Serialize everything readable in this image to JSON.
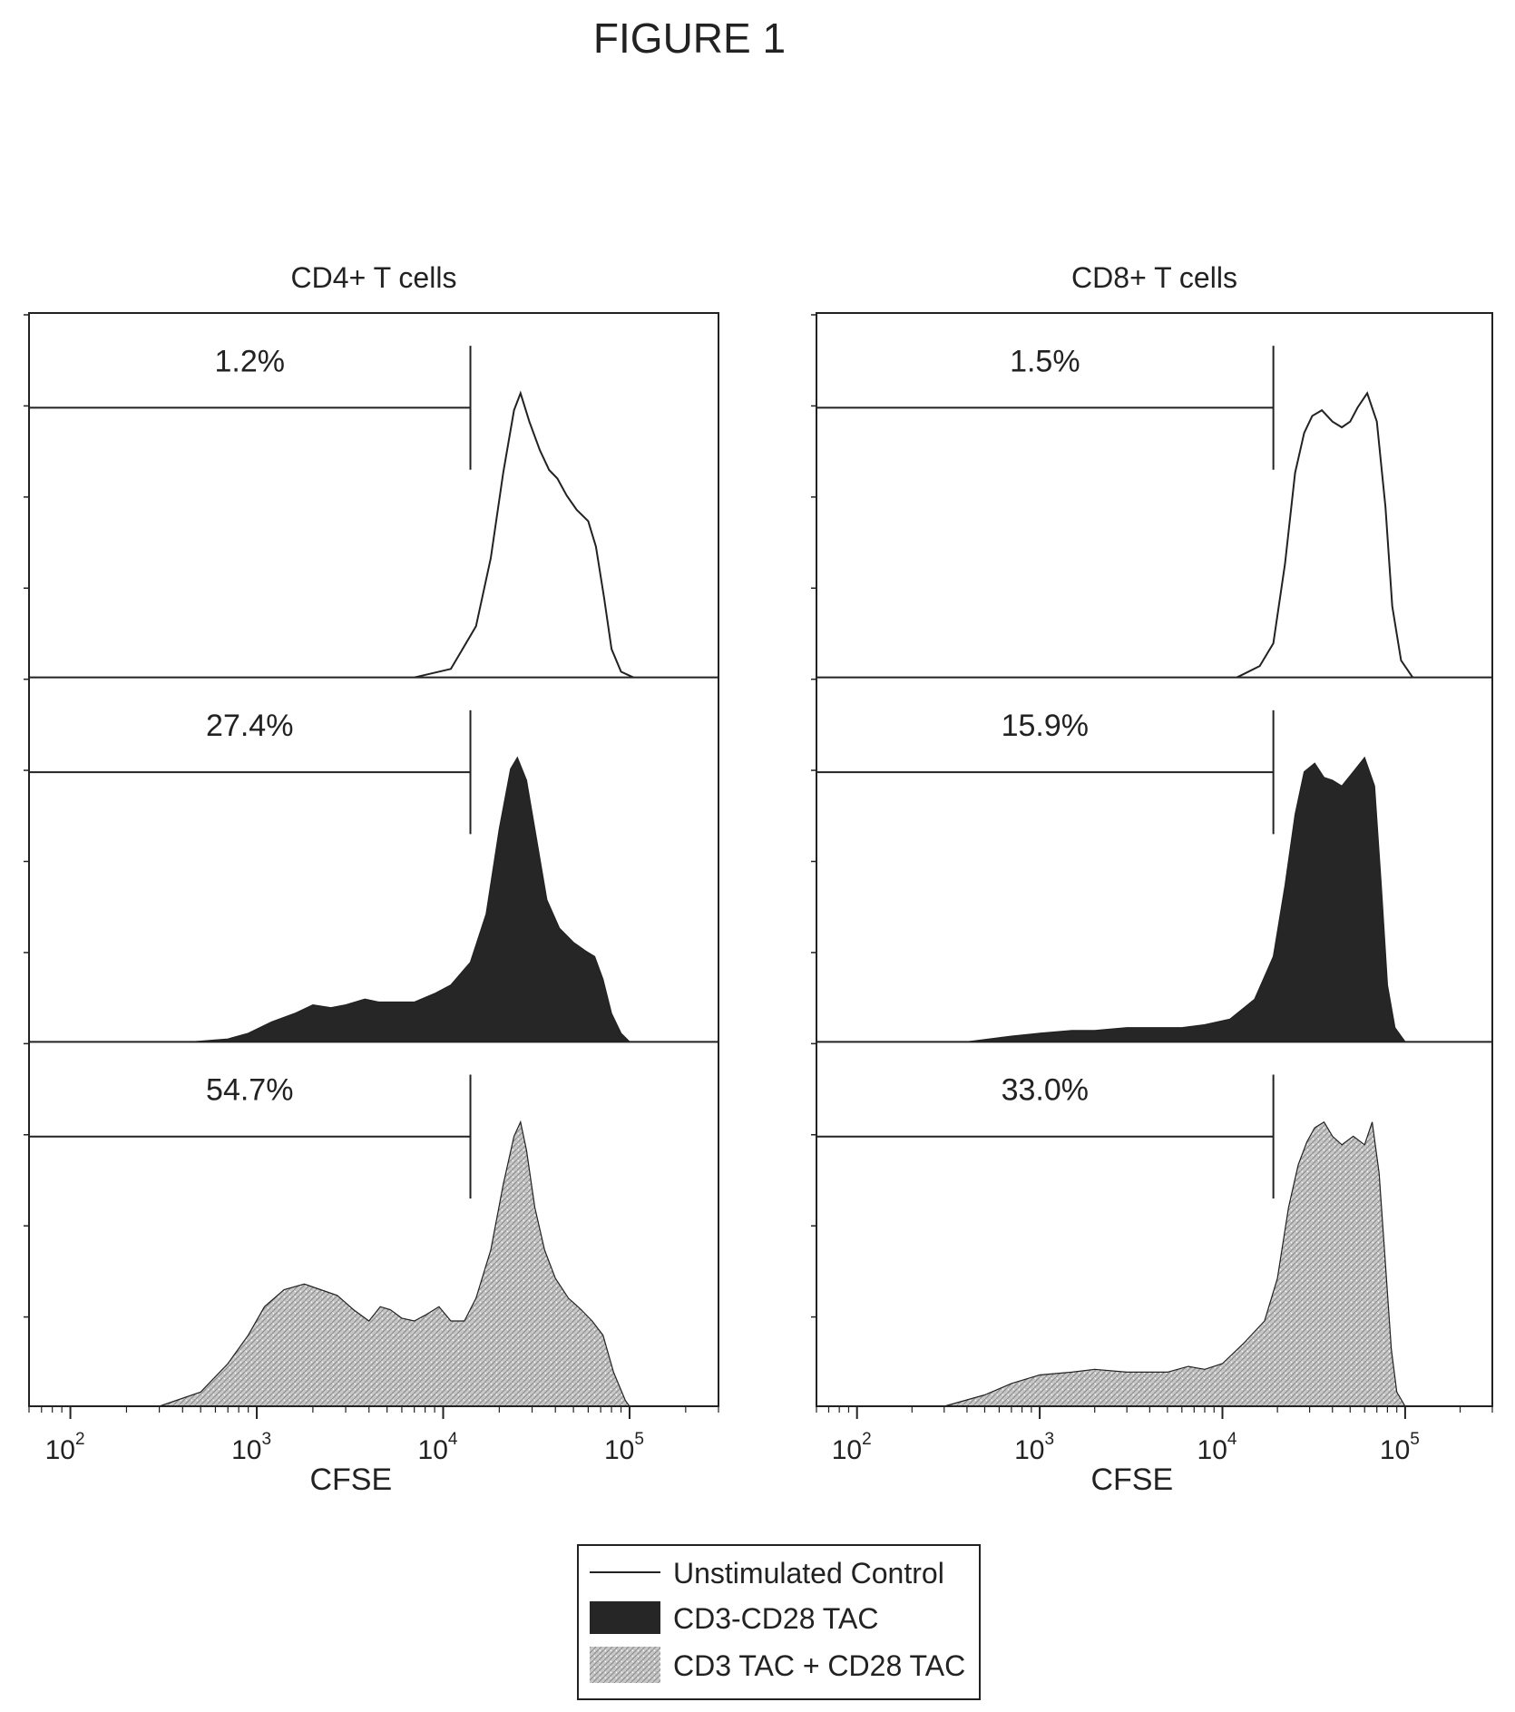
{
  "figure_label": "FIGURE 1",
  "colors": {
    "ink": "#222222",
    "dark_fill": "#262626",
    "light_fill": "#b9b9b9",
    "background": "#ffffff"
  },
  "chart_data": [
    {
      "type": "area",
      "title": "CD4+ T cells",
      "xlabel": "CFSE",
      "x_scale": "log",
      "xlim": [
        60,
        300000
      ],
      "x_ticks": [
        100,
        1000,
        10000,
        100000
      ],
      "x_tick_labels": [
        {
          "base": "10",
          "exp": "2"
        },
        {
          "base": "10",
          "exp": "3"
        },
        {
          "base": "10",
          "exp": "4"
        },
        {
          "base": "10",
          "exp": "5"
        }
      ],
      "gate_upper": 14000,
      "rows": [
        {
          "label": "1.2%",
          "series": "Unstimulated Control",
          "fill": "none",
          "points": [
            [
              7000,
              0
            ],
            [
              11000,
              0.03
            ],
            [
              15000,
              0.18
            ],
            [
              18000,
              0.42
            ],
            [
              21000,
              0.72
            ],
            [
              24000,
              0.94
            ],
            [
              26000,
              1.0
            ],
            [
              29000,
              0.9
            ],
            [
              33000,
              0.8
            ],
            [
              37000,
              0.73
            ],
            [
              41000,
              0.7
            ],
            [
              46000,
              0.64
            ],
            [
              52000,
              0.59
            ],
            [
              60000,
              0.55
            ],
            [
              66000,
              0.46
            ],
            [
              73000,
              0.28
            ],
            [
              80000,
              0.1
            ],
            [
              90000,
              0.02
            ],
            [
              105000,
              0
            ]
          ]
        },
        {
          "label": "27.4%",
          "series": "CD3-CD28 TAC",
          "fill": "dark",
          "points": [
            [
              450,
              0
            ],
            [
              700,
              0.01
            ],
            [
              900,
              0.03
            ],
            [
              1200,
              0.07
            ],
            [
              1600,
              0.1
            ],
            [
              2000,
              0.13
            ],
            [
              2500,
              0.12
            ],
            [
              3000,
              0.13
            ],
            [
              3800,
              0.15
            ],
            [
              4500,
              0.14
            ],
            [
              5500,
              0.14
            ],
            [
              7000,
              0.14
            ],
            [
              9000,
              0.17
            ],
            [
              11000,
              0.2
            ],
            [
              14000,
              0.28
            ],
            [
              17000,
              0.45
            ],
            [
              20000,
              0.75
            ],
            [
              23000,
              0.96
            ],
            [
              25000,
              1.0
            ],
            [
              28000,
              0.92
            ],
            [
              31000,
              0.75
            ],
            [
              36000,
              0.5
            ],
            [
              42000,
              0.4
            ],
            [
              50000,
              0.35
            ],
            [
              58000,
              0.32
            ],
            [
              65000,
              0.3
            ],
            [
              72000,
              0.22
            ],
            [
              80000,
              0.1
            ],
            [
              90000,
              0.03
            ],
            [
              100000,
              0
            ]
          ]
        },
        {
          "label": "54.7%",
          "series": "CD3 TAC + CD28 TAC",
          "fill": "light",
          "points": [
            [
              300,
              0
            ],
            [
              500,
              0.05
            ],
            [
              700,
              0.15
            ],
            [
              900,
              0.25
            ],
            [
              1100,
              0.35
            ],
            [
              1400,
              0.41
            ],
            [
              1800,
              0.43
            ],
            [
              2200,
              0.41
            ],
            [
              2700,
              0.39
            ],
            [
              3300,
              0.34
            ],
            [
              4000,
              0.3
            ],
            [
              4600,
              0.35
            ],
            [
              5200,
              0.34
            ],
            [
              6000,
              0.31
            ],
            [
              7000,
              0.3
            ],
            [
              8000,
              0.32
            ],
            [
              9500,
              0.35
            ],
            [
              11000,
              0.3
            ],
            [
              13000,
              0.3
            ],
            [
              15000,
              0.38
            ],
            [
              18000,
              0.55
            ],
            [
              21000,
              0.78
            ],
            [
              24000,
              0.95
            ],
            [
              26000,
              1.0
            ],
            [
              28000,
              0.9
            ],
            [
              31000,
              0.7
            ],
            [
              35000,
              0.55
            ],
            [
              40000,
              0.45
            ],
            [
              47000,
              0.38
            ],
            [
              55000,
              0.34
            ],
            [
              63000,
              0.3
            ],
            [
              72000,
              0.25
            ],
            [
              82000,
              0.12
            ],
            [
              95000,
              0.02
            ],
            [
              100000,
              0
            ]
          ]
        }
      ]
    },
    {
      "type": "area",
      "title": "CD8+ T cells",
      "xlabel": "CFSE",
      "x_scale": "log",
      "xlim": [
        60,
        300000
      ],
      "x_ticks": [
        100,
        1000,
        10000,
        100000
      ],
      "x_tick_labels": [
        {
          "base": "10",
          "exp": "2"
        },
        {
          "base": "10",
          "exp": "3"
        },
        {
          "base": "10",
          "exp": "4"
        },
        {
          "base": "10",
          "exp": "5"
        }
      ],
      "gate_upper": 19000,
      "rows": [
        {
          "label": "1.5%",
          "series": "Unstimulated Control",
          "fill": "none",
          "points": [
            [
              12000,
              0
            ],
            [
              16000,
              0.04
            ],
            [
              19000,
              0.12
            ],
            [
              22000,
              0.4
            ],
            [
              25000,
              0.72
            ],
            [
              28000,
              0.86
            ],
            [
              31000,
              0.92
            ],
            [
              35000,
              0.94
            ],
            [
              40000,
              0.9
            ],
            [
              45000,
              0.88
            ],
            [
              50000,
              0.9
            ],
            [
              55000,
              0.95
            ],
            [
              62000,
              1.0
            ],
            [
              70000,
              0.9
            ],
            [
              78000,
              0.6
            ],
            [
              85000,
              0.25
            ],
            [
              95000,
              0.06
            ],
            [
              110000,
              0
            ]
          ]
        },
        {
          "label": "15.9%",
          "series": "CD3-CD28 TAC",
          "fill": "dark",
          "points": [
            [
              400,
              0
            ],
            [
              700,
              0.02
            ],
            [
              1000,
              0.03
            ],
            [
              1500,
              0.04
            ],
            [
              2000,
              0.04
            ],
            [
              3000,
              0.05
            ],
            [
              4000,
              0.05
            ],
            [
              6000,
              0.05
            ],
            [
              8000,
              0.06
            ],
            [
              11000,
              0.08
            ],
            [
              15000,
              0.15
            ],
            [
              19000,
              0.3
            ],
            [
              22000,
              0.55
            ],
            [
              25000,
              0.8
            ],
            [
              28000,
              0.95
            ],
            [
              32000,
              0.98
            ],
            [
              36000,
              0.93
            ],
            [
              40000,
              0.92
            ],
            [
              45000,
              0.9
            ],
            [
              52000,
              0.95
            ],
            [
              60000,
              1.0
            ],
            [
              68000,
              0.9
            ],
            [
              74000,
              0.55
            ],
            [
              80000,
              0.2
            ],
            [
              88000,
              0.05
            ],
            [
              100000,
              0
            ]
          ]
        },
        {
          "label": "33.0%",
          "series": "CD3 TAC + CD28 TAC",
          "fill": "light",
          "points": [
            [
              300,
              0
            ],
            [
              500,
              0.04
            ],
            [
              700,
              0.08
            ],
            [
              1000,
              0.11
            ],
            [
              1500,
              0.12
            ],
            [
              2000,
              0.13
            ],
            [
              3000,
              0.12
            ],
            [
              4000,
              0.12
            ],
            [
              5000,
              0.12
            ],
            [
              6500,
              0.14
            ],
            [
              8000,
              0.13
            ],
            [
              10000,
              0.15
            ],
            [
              13000,
              0.22
            ],
            [
              17000,
              0.3
            ],
            [
              20000,
              0.45
            ],
            [
              23000,
              0.7
            ],
            [
              26000,
              0.85
            ],
            [
              29000,
              0.93
            ],
            [
              32000,
              0.98
            ],
            [
              36000,
              1.0
            ],
            [
              40000,
              0.95
            ],
            [
              45000,
              0.92
            ],
            [
              52000,
              0.95
            ],
            [
              60000,
              0.92
            ],
            [
              66000,
              1.0
            ],
            [
              72000,
              0.82
            ],
            [
              78000,
              0.5
            ],
            [
              84000,
              0.2
            ],
            [
              90000,
              0.05
            ],
            [
              100000,
              0
            ]
          ]
        }
      ]
    }
  ],
  "legend": {
    "items": [
      {
        "label": "Unstimulated Control",
        "swatch": "line"
      },
      {
        "label": "CD3-CD28 TAC",
        "swatch": "dark"
      },
      {
        "label": "CD3 TAC + CD28 TAC",
        "swatch": "light"
      }
    ]
  }
}
